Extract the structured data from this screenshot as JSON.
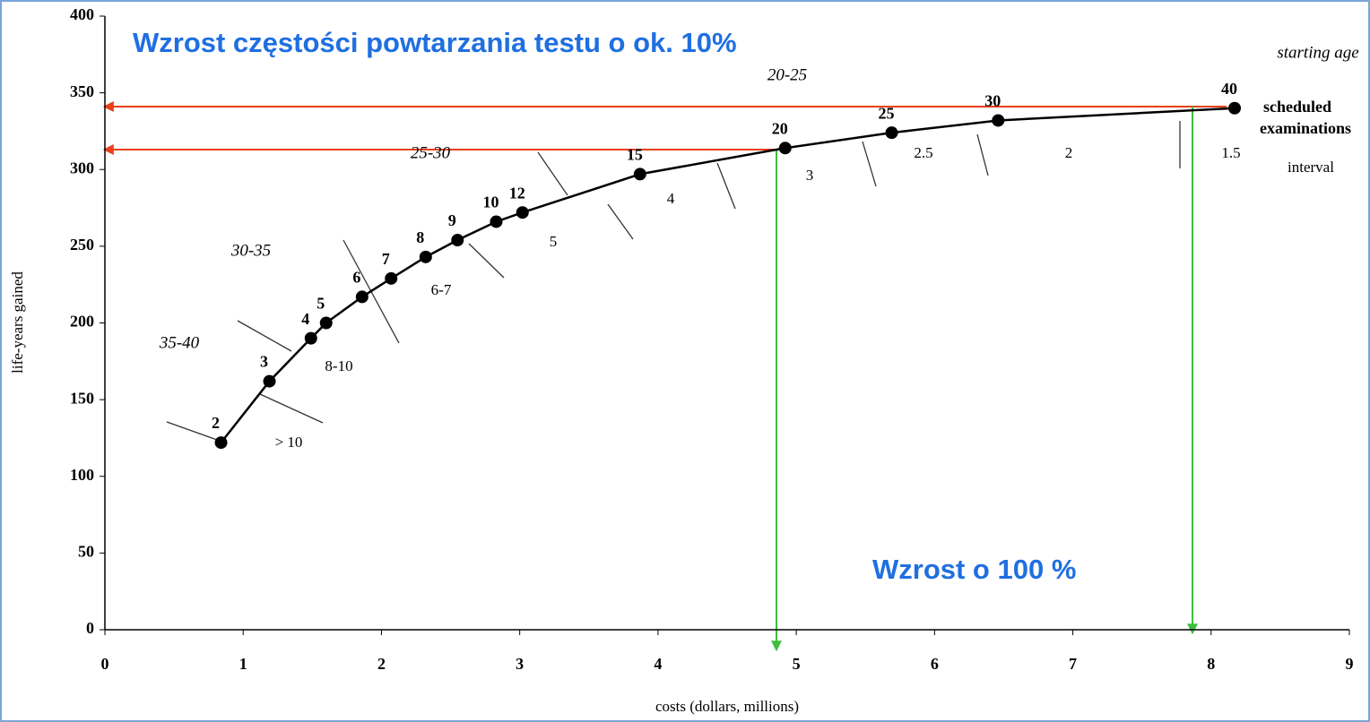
{
  "chart_data": {
    "type": "line",
    "x_label": "costs (dollars, millions)",
    "y_label": "life-years gained",
    "x": [
      0.84,
      1.19,
      1.49,
      1.6,
      1.86,
      2.07,
      2.32,
      2.55,
      2.83,
      3.02,
      3.87,
      4.92,
      5.69,
      6.46,
      8.17
    ],
    "values": [
      122,
      162,
      190,
      200,
      217,
      229,
      243,
      254,
      266,
      272,
      297,
      314,
      324,
      332,
      340
    ],
    "point_labels": [
      2,
      3,
      4,
      5,
      6,
      7,
      8,
      9,
      10,
      12,
      15,
      20,
      25,
      30,
      40
    ],
    "color": "#000000",
    "xlim": [
      0,
      9
    ],
    "xticks": [
      0,
      1,
      2,
      3,
      4,
      5,
      6,
      7,
      8,
      9
    ],
    "ylim": [
      0,
      400
    ],
    "yticks": [
      0,
      50,
      100,
      150,
      200,
      250,
      300,
      350,
      400
    ],
    "starting_age_labels": [
      "35-40",
      "30-35",
      "25-30",
      "20-25",
      "starting age"
    ],
    "interval_labels": [
      "> 10",
      "8-10",
      "6-7",
      "5",
      "4",
      "3",
      "2.5",
      "2",
      "1.5",
      "interval"
    ],
    "legend_texts": [
      "scheduled",
      "examinations"
    ],
    "annotations": [
      "Wzrost częstości powtarzania testu o ok. 10%",
      "Wzrost o 100 %"
    ]
  }
}
